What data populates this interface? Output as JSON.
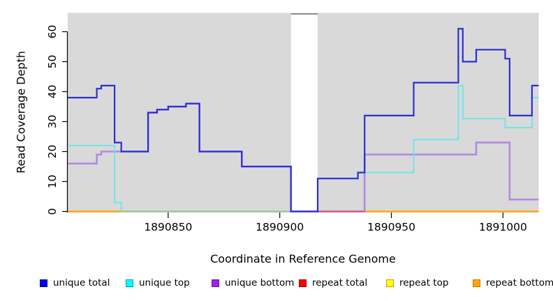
{
  "chart_data": {
    "type": "line",
    "subtype": "step",
    "title": "",
    "xlabel": "Coordinate in Reference Genome",
    "ylabel": "Read Coverage Depth",
    "xlim": [
      1890805,
      1891016
    ],
    "ylim": [
      0,
      66
    ],
    "x_ticks": [
      1890850,
      1890900,
      1890950,
      1891000
    ],
    "y_ticks": [
      0,
      10,
      20,
      30,
      40,
      50,
      60
    ],
    "plot_bg": "#d9d9d9",
    "grid": "off",
    "legend_position": "bottom",
    "gap_region": {
      "start": 1890905,
      "end": 1890917,
      "fill": "#ffffff",
      "top_border_color": "#8f8f8f"
    },
    "series": [
      {
        "name": "unique total",
        "line_color": "#2d2dd4",
        "swatch_fill": "#0000ee",
        "swatch_border": "#000090",
        "width": 2.2,
        "points": [
          [
            1890805,
            38
          ],
          [
            1890818,
            41
          ],
          [
            1890820,
            42
          ],
          [
            1890826,
            23
          ],
          [
            1890829,
            20
          ],
          [
            1890841,
            33
          ],
          [
            1890845,
            34
          ],
          [
            1890850,
            35
          ],
          [
            1890858,
            36
          ],
          [
            1890864,
            20
          ],
          [
            1890883,
            15
          ],
          [
            1890905,
            0
          ],
          [
            1890917,
            11
          ],
          [
            1890935,
            13
          ],
          [
            1890938,
            32
          ],
          [
            1890960,
            43
          ],
          [
            1890980,
            61
          ],
          [
            1890982,
            50
          ],
          [
            1890988,
            54
          ],
          [
            1891001,
            51
          ],
          [
            1891003,
            32
          ],
          [
            1891013,
            42
          ]
        ]
      },
      {
        "name": "unique top",
        "line_color": "#74e3e8",
        "swatch_fill": "#00ffff",
        "swatch_border": "#00a0a8",
        "width": 2,
        "points": [
          [
            1890805,
            22
          ],
          [
            1890826,
            3
          ],
          [
            1890829,
            0
          ],
          [
            1890917,
            11
          ],
          [
            1890935,
            13
          ],
          [
            1890960,
            24
          ],
          [
            1890980,
            42
          ],
          [
            1890982,
            31
          ],
          [
            1891001,
            28
          ],
          [
            1891013,
            38
          ]
        ]
      },
      {
        "name": "unique bottom",
        "line_color": "#b18ae0",
        "swatch_fill": "#a020f0",
        "swatch_border": "#6a1b9a",
        "width": 2.6,
        "points": [
          [
            1890805,
            16
          ],
          [
            1890818,
            19
          ],
          [
            1890820,
            20
          ],
          [
            1890841,
            33
          ],
          [
            1890845,
            34
          ],
          [
            1890850,
            35
          ],
          [
            1890858,
            36
          ],
          [
            1890864,
            20
          ],
          [
            1890883,
            15
          ],
          [
            1890905,
            0
          ],
          [
            1890938,
            19
          ],
          [
            1890988,
            23
          ],
          [
            1891003,
            4
          ]
        ]
      },
      {
        "name": "repeat total",
        "line_color": "#e03030",
        "swatch_fill": "#ff0000",
        "swatch_border": "#990000",
        "width": 2,
        "points": [
          [
            1890805,
            0
          ]
        ]
      },
      {
        "name": "repeat top",
        "line_color": "#ffff00",
        "swatch_fill": "#ffff00",
        "swatch_border": "#c8a000",
        "width": 2,
        "points": [
          [
            1890805,
            0
          ]
        ]
      },
      {
        "name": "repeat bottom",
        "line_color": "#ffa500",
        "swatch_fill": "#ffa500",
        "swatch_border": "#c87000",
        "width": 2.2,
        "points": [
          [
            1890805,
            0
          ]
        ]
      }
    ],
    "zero_overlap_segments": [
      {
        "start": 1890829,
        "end": 1890905,
        "color": "#85cf9d"
      },
      {
        "start": 1890917,
        "end": 1890938,
        "color": "#c7597f"
      }
    ]
  }
}
